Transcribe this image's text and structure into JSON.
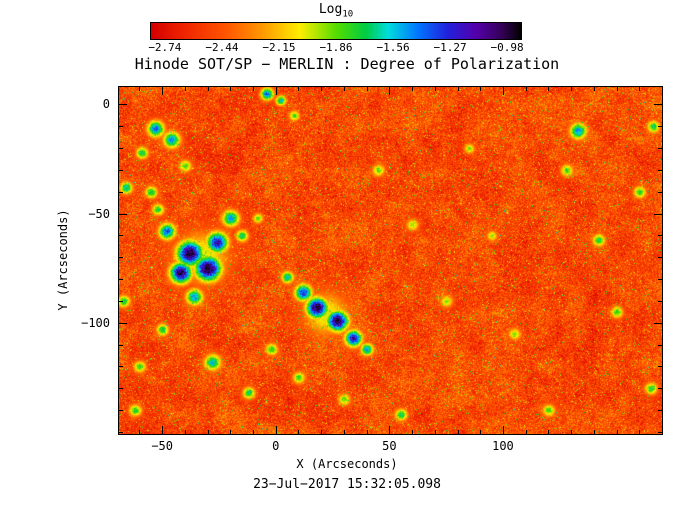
{
  "title": "Hinode SOT/SP − MERLIN : Degree of Polarization",
  "caption": "23−Jul−2017 15:32:05.098",
  "colorbar": {
    "label_main": "Log",
    "label_sub": "10",
    "tick_labels": [
      "−2.74",
      "−2.44",
      "−2.15",
      "−1.86",
      "−1.56",
      "−1.27",
      "−0.98"
    ]
  },
  "axes": {
    "x": {
      "label": "X (Arcseconds)",
      "range": [
        -69,
        170
      ],
      "major": [
        -50,
        0,
        50,
        100
      ],
      "minor_step": 10,
      "tick_labels": [
        "−50",
        "0",
        "50",
        "100"
      ]
    },
    "y": {
      "label": "Y (Arcseconds)",
      "range": [
        -151,
        8
      ],
      "major": [
        0,
        -50,
        -100
      ],
      "minor_step": 10,
      "tick_labels": [
        "0",
        "−50",
        "−100"
      ]
    }
  },
  "chart_data": {
    "type": "heatmap",
    "title": "Hinode SOT/SP − MERLIN : Degree of Polarization",
    "xlabel": "X (Arcseconds)",
    "ylabel": "Y (Arcseconds)",
    "timestamp": "23−Jul−2017 15:32:05.098",
    "xlim": [
      -69,
      170
    ],
    "ylim": [
      -151,
      8
    ],
    "colorbar_label": "Log10",
    "colorbar_ticks": [
      -2.74,
      -2.44,
      -2.15,
      -1.86,
      -1.56,
      -1.27,
      -0.98
    ],
    "value_range": [
      -2.74,
      -0.98
    ],
    "background_base": -2.62,
    "background_value_range": [
      -2.74,
      -2.2
    ],
    "legend_position": "top",
    "grid": false,
    "colormap_stops": [
      {
        "t": 0.0,
        "color": "#d40000"
      },
      {
        "t": 0.08,
        "color": "#ee2200"
      },
      {
        "t": 0.2,
        "color": "#ff5500"
      },
      {
        "t": 0.3,
        "color": "#ff9900"
      },
      {
        "t": 0.4,
        "color": "#ffee00"
      },
      {
        "t": 0.5,
        "color": "#55dd00"
      },
      {
        "t": 0.58,
        "color": "#00cc44"
      },
      {
        "t": 0.64,
        "color": "#00dddd"
      },
      {
        "t": 0.72,
        "color": "#0077ff"
      },
      {
        "t": 0.8,
        "color": "#2222dd"
      },
      {
        "t": 0.88,
        "color": "#5500aa"
      },
      {
        "t": 0.95,
        "color": "#330055"
      },
      {
        "t": 1.0,
        "color": "#000000"
      }
    ],
    "enhanced_regions": [
      [
        -38,
        -68,
        6,
        -1.0
      ],
      [
        -30,
        -75,
        6,
        -0.98
      ],
      [
        -42,
        -77,
        5,
        -1.05
      ],
      [
        -26,
        -63,
        5,
        -1.2
      ],
      [
        -33,
        -70,
        13,
        -1.95
      ],
      [
        -20,
        -52,
        4,
        -1.5
      ],
      [
        -36,
        -88,
        4,
        -1.5
      ],
      [
        -48,
        -58,
        4,
        -1.4
      ],
      [
        -15,
        -60,
        3,
        -1.7
      ],
      [
        12,
        -86,
        4,
        -1.3
      ],
      [
        18,
        -93,
        5,
        -1.0
      ],
      [
        27,
        -99,
        5,
        -1.05
      ],
      [
        34,
        -107,
        4,
        -1.2
      ],
      [
        22,
        -96,
        11,
        -2.0
      ],
      [
        5,
        -79,
        3,
        -1.6
      ],
      [
        40,
        -112,
        3,
        -1.5
      ],
      [
        -46,
        -16,
        4,
        -1.5
      ],
      [
        -53,
        -11,
        4,
        -1.45
      ],
      [
        -59,
        -22,
        3,
        -1.7
      ],
      [
        -40,
        -28,
        3,
        -1.8
      ],
      [
        -4,
        5,
        3,
        -1.4
      ],
      [
        2,
        2,
        2.5,
        -1.6
      ],
      [
        8,
        -5,
        2.5,
        -1.8
      ],
      [
        -66,
        -38,
        3,
        -1.6
      ],
      [
        -67,
        -90,
        3,
        -1.7
      ],
      [
        -60,
        -120,
        3,
        -1.8
      ],
      [
        -62,
        -140,
        3,
        -1.75
      ],
      [
        -50,
        -103,
        3,
        -1.7
      ],
      [
        -28,
        -118,
        4,
        -1.6
      ],
      [
        -12,
        -132,
        3,
        -1.7
      ],
      [
        -2,
        -112,
        3,
        -1.75
      ],
      [
        10,
        -125,
        3,
        -1.8
      ],
      [
        30,
        -135,
        3,
        -1.85
      ],
      [
        55,
        -142,
        3,
        -1.7
      ],
      [
        133,
        -12,
        4,
        -1.5
      ],
      [
        128,
        -30,
        3,
        -1.8
      ],
      [
        142,
        -62,
        3,
        -1.7
      ],
      [
        160,
        -40,
        3,
        -1.75
      ],
      [
        150,
        -95,
        3,
        -1.8
      ],
      [
        120,
        -140,
        3,
        -1.8
      ],
      [
        165,
        -130,
        3,
        -1.75
      ],
      [
        166,
        -10,
        3,
        -1.7
      ],
      [
        60,
        -55,
        3,
        -1.9
      ],
      [
        75,
        -90,
        3,
        -1.9
      ],
      [
        95,
        -60,
        2.5,
        -1.9
      ],
      [
        45,
        -30,
        3,
        -1.85
      ],
      [
        85,
        -20,
        2.5,
        -1.9
      ],
      [
        105,
        -105,
        3,
        -1.9
      ],
      [
        -55,
        -40,
        3,
        -1.7
      ],
      [
        -52,
        -48,
        3,
        -1.75
      ],
      [
        -8,
        -52,
        2.5,
        -1.85
      ]
    ]
  }
}
